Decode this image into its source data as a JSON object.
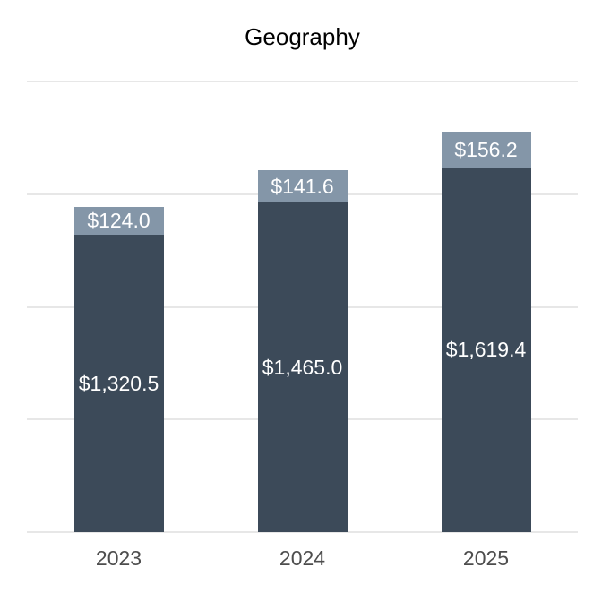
{
  "chart_data": {
    "type": "bar",
    "stacked": true,
    "title": "Geography",
    "categories": [
      "2023",
      "2024",
      "2025"
    ],
    "series": [
      {
        "name": "bottom-segment",
        "color": "#3c4a59",
        "values": [
          1320.5,
          1465.0,
          1619.4
        ],
        "labels": [
          "$1,320.5",
          "$1,465.0",
          "$1,619.4"
        ],
        "label_color": "#ffffff"
      },
      {
        "name": "top-segment",
        "color": "#8496a8",
        "values": [
          124.0,
          141.6,
          156.2
        ],
        "labels": [
          "$124.0",
          "$141.6",
          "$156.2"
        ],
        "label_color": "#ffffff"
      }
    ],
    "xlabel": "",
    "ylabel": "",
    "ylim": [
      0,
      2000
    ],
    "gridline_values": [
      0,
      500,
      1000,
      1500,
      2000
    ],
    "y_tick_labels_shown": false,
    "legend_position": "none",
    "grid_color": "#e7e7e7",
    "axis_label_color": "#4d4d4d",
    "title_color": "#000000",
    "background_color": "#ffffff"
  }
}
